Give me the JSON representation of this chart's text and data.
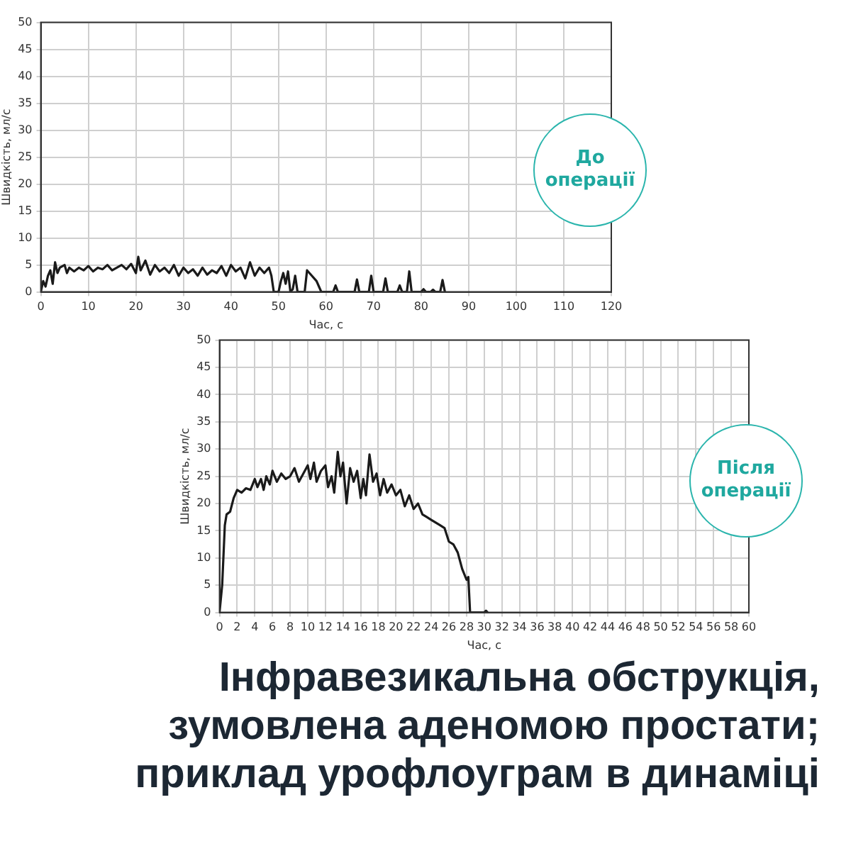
{
  "chart_data": [
    {
      "type": "line",
      "xlabel": "Час, с",
      "ylabel": "Швидкість, мл/с",
      "color": "#1a1a1a",
      "xlim": [
        0,
        120
      ],
      "xticks": [
        0,
        10,
        20,
        30,
        40,
        50,
        60,
        70,
        80,
        90,
        100,
        110,
        120
      ],
      "ylim": [
        0,
        50
      ],
      "yticks": [
        0,
        5,
        10,
        15,
        20,
        25,
        30,
        35,
        40,
        45,
        50
      ],
      "grid": true,
      "marker": "none",
      "line_style": "solid",
      "annotations": [
        "До\nоперації"
      ],
      "x": [
        0,
        0.5,
        1,
        1.5,
        2,
        2.5,
        3,
        3.5,
        4,
        5,
        5.5,
        6,
        7,
        8,
        9,
        10,
        11,
        12,
        13,
        14,
        15,
        16,
        17,
        18,
        19,
        20,
        20.5,
        21,
        22,
        23,
        24,
        25,
        26,
        27,
        28,
        29,
        30,
        31,
        32,
        33,
        34,
        35,
        36,
        37,
        38,
        39,
        40,
        41,
        42,
        43,
        44,
        45,
        46,
        47,
        48,
        48.5,
        49,
        50,
        50.5,
        51,
        51.5,
        52,
        52.5,
        53,
        53.5,
        54,
        55.5,
        56,
        57,
        58,
        58.5,
        59,
        61.5,
        62,
        62.5,
        66,
        66.5,
        67,
        69,
        69.5,
        70,
        72,
        72.5,
        73,
        75,
        75.5,
        76,
        77,
        77.5,
        78,
        80,
        80.5,
        81,
        82,
        82.5,
        83,
        84,
        84.5,
        85
      ],
      "values": [
        0,
        2,
        1,
        3,
        4,
        1.5,
        5.5,
        3.5,
        4.5,
        5,
        3.5,
        4.5,
        3.8,
        4.5,
        4,
        4.8,
        3.8,
        4.5,
        4.2,
        5,
        4,
        4.5,
        5,
        4.2,
        5.2,
        3.5,
        6.5,
        4,
        5.8,
        3.2,
        5,
        3.8,
        4.5,
        3.5,
        5,
        3,
        4.5,
        3.5,
        4.2,
        3,
        4.5,
        3.2,
        4,
        3.5,
        4.8,
        3,
        5,
        3.8,
        4.5,
        2.5,
        5.5,
        3,
        4.5,
        3.5,
        4.5,
        3,
        0,
        0,
        2,
        3.5,
        1.5,
        3.8,
        0,
        0.5,
        3,
        0,
        0,
        4,
        3,
        2,
        1,
        0,
        0,
        1.2,
        0,
        0,
        2.3,
        0,
        0,
        3,
        0,
        0,
        2.5,
        0,
        0,
        1.2,
        0,
        0,
        3.8,
        0,
        0,
        0.5,
        0,
        0,
        0.4,
        0,
        0,
        2.2,
        0
      ]
    },
    {
      "type": "line",
      "title": "Інфравезикальна обструкція,\nзумовлена аденомою простати;\nприклад урофлоуграм в динаміці",
      "xlabel": "Час, с",
      "ylabel": "Швидкість, мл/с",
      "color": "#1a1a1a",
      "xlim": [
        0,
        60
      ],
      "xticks": [
        0,
        2,
        4,
        6,
        8,
        10,
        12,
        14,
        16,
        18,
        20,
        22,
        24,
        26,
        28,
        30,
        32,
        34,
        36,
        38,
        40,
        42,
        44,
        46,
        48,
        50,
        52,
        54,
        56,
        58,
        60
      ],
      "ylim": [
        0,
        50
      ],
      "yticks": [
        0,
        5,
        10,
        15,
        20,
        25,
        30,
        35,
        40,
        45,
        50
      ],
      "grid": true,
      "marker": "none",
      "line_style": "solid",
      "annotations": [
        "Після\nоперації"
      ],
      "x": [
        0,
        0.3,
        0.6,
        0.8,
        1.2,
        1.6,
        2,
        2.5,
        3,
        3.5,
        4,
        4.3,
        4.7,
        5,
        5.3,
        5.7,
        6,
        6.5,
        7,
        7.5,
        8,
        8.5,
        9,
        9.5,
        10,
        10.3,
        10.7,
        11,
        11.5,
        12,
        12.3,
        12.7,
        13,
        13.4,
        13.7,
        14,
        14.4,
        14.8,
        15.2,
        15.6,
        16,
        16.3,
        16.6,
        17,
        17.4,
        17.8,
        18.2,
        18.6,
        19,
        19.5,
        20,
        20.5,
        21,
        21.5,
        22,
        22.5,
        23,
        23.5,
        24,
        24.5,
        25,
        25.5,
        26,
        26.5,
        27,
        27.5,
        28,
        28.2,
        28.4,
        30,
        30.2,
        30.4
      ],
      "values": [
        0,
        5,
        16,
        18,
        18.5,
        21,
        22.5,
        22,
        22.8,
        22.5,
        24.5,
        23,
        24.5,
        22.5,
        25,
        23.5,
        26,
        24,
        25.5,
        24.5,
        25,
        26.5,
        24,
        25.5,
        27,
        24.5,
        27.5,
        24,
        26,
        27,
        23,
        25,
        22,
        29.5,
        25,
        27.5,
        20,
        26.5,
        24,
        26,
        21,
        24.5,
        21.5,
        29,
        24,
        25.5,
        21.5,
        24.5,
        22,
        23.5,
        21.5,
        22.5,
        19.5,
        21.5,
        19,
        20,
        18,
        17.5,
        17,
        16.5,
        16,
        15.5,
        13,
        12.5,
        11,
        8,
        6,
        6.5,
        0,
        0,
        0.3,
        0
      ]
    }
  ]
}
